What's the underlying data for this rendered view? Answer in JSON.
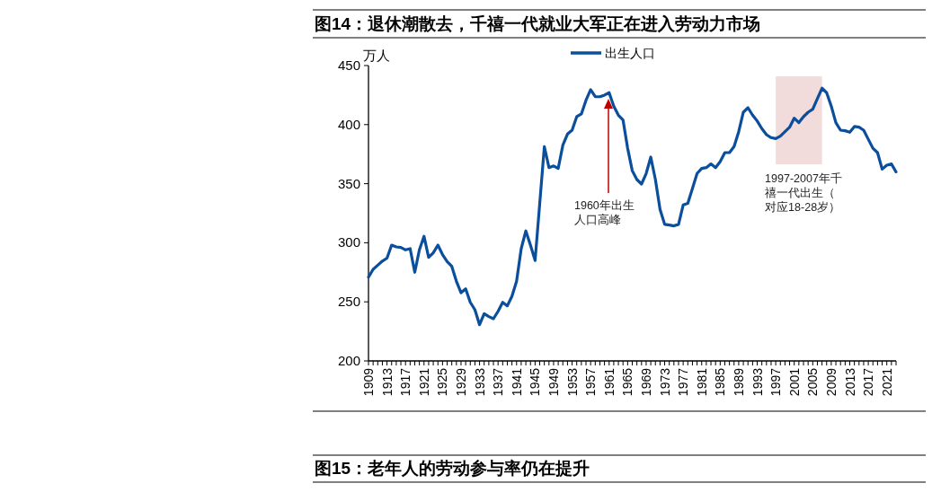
{
  "chart_data": {
    "type": "line",
    "title": "图14：退休潮散去，千禧一代就业大军正在进入劳动力市场",
    "ylabel": "万人",
    "x": [
      1909,
      1910,
      1911,
      1912,
      1913,
      1914,
      1915,
      1916,
      1917,
      1918,
      1919,
      1920,
      1921,
      1922,
      1923,
      1924,
      1925,
      1926,
      1927,
      1928,
      1929,
      1930,
      1931,
      1932,
      1933,
      1934,
      1935,
      1936,
      1937,
      1938,
      1939,
      1940,
      1941,
      1942,
      1943,
      1944,
      1945,
      1946,
      1947,
      1948,
      1949,
      1950,
      1951,
      1952,
      1953,
      1954,
      1955,
      1956,
      1957,
      1958,
      1959,
      1960,
      1961,
      1962,
      1963,
      1964,
      1965,
      1966,
      1967,
      1968,
      1969,
      1970,
      1971,
      1972,
      1973,
      1974,
      1975,
      1976,
      1977,
      1978,
      1979,
      1980,
      1981,
      1982,
      1983,
      1984,
      1985,
      1986,
      1987,
      1988,
      1989,
      1990,
      1991,
      1992,
      1993,
      1994,
      1995,
      1996,
      1997,
      1998,
      1999,
      2000,
      2001,
      2002,
      2003,
      2004,
      2005,
      2006,
      2007,
      2008,
      2009,
      2010,
      2011,
      2012,
      2013,
      2014,
      2015,
      2016,
      2017,
      2018,
      2019,
      2020,
      2021,
      2022,
      2023
    ],
    "series": [
      {
        "name": "出生人口",
        "color": "#0b4f9c",
        "values": [
          271,
          277.5,
          281,
          284.5,
          287,
          298,
          296.5,
          296,
          294,
          295,
          275,
          294,
          305.5,
          287.6,
          291.5,
          298,
          290,
          284,
          280,
          267.4,
          257.7,
          261,
          249.6,
          243.3,
          230.6,
          240,
          237.5,
          235.7,
          242,
          249.6,
          246.6,
          254.7,
          267.4,
          295,
          310,
          298,
          285,
          333,
          381.4,
          363.6,
          365,
          363,
          382.6,
          392,
          395.3,
          406.7,
          409,
          420.6,
          429.5,
          423.6,
          423.6,
          425,
          427,
          415.6,
          408,
          404,
          380,
          361,
          353.5,
          349.7,
          358.6,
          372.5,
          353.5,
          328.2,
          315.6,
          315,
          314.3,
          315.6,
          332,
          333.3,
          345.9,
          358.6,
          362.9,
          363.6,
          366.7,
          363.6,
          368.7,
          376.3,
          376.3,
          381.4,
          394,
          410.5,
          414.3,
          408,
          403,
          396.6,
          391.5,
          389,
          388.2,
          390.3,
          394,
          397.8,
          405.5,
          401.7,
          406.7,
          410.5,
          413,
          421.9,
          430.8,
          427,
          415.6,
          401.7,
          395.3,
          394.8,
          393.5,
          398.4,
          397.8,
          395.3,
          387.6,
          380,
          376.3,
          362.3,
          365.7,
          366.7,
          360
        ]
      }
    ],
    "xlim": [
      1909,
      2023
    ],
    "xticks": [
      1909,
      {
        "value": 1910,
        "label": null
      },
      {
        "value": 1911,
        "label": null
      },
      {
        "value": 1912,
        "label": null
      },
      1913,
      {
        "value": 1914,
        "label": null
      },
      {
        "value": 1915,
        "label": null
      },
      {
        "value": 1916,
        "label": null
      },
      1917,
      {
        "value": 1918,
        "label": null
      },
      {
        "value": 1919,
        "label": null
      },
      {
        "value": 1920,
        "label": null
      },
      1921,
      {
        "value": 1922,
        "label": null
      },
      {
        "value": 1923,
        "label": null
      },
      {
        "value": 1924,
        "label": null
      },
      1925,
      {
        "value": 1926,
        "label": null
      },
      {
        "value": 1927,
        "label": null
      },
      {
        "value": 1928,
        "label": null
      },
      1929,
      {
        "value": 1930,
        "label": null
      },
      {
        "value": 1931,
        "label": null
      },
      {
        "value": 1932,
        "label": null
      },
      1933,
      {
        "value": 1934,
        "label": null
      },
      {
        "value": 1935,
        "label": null
      },
      {
        "value": 1936,
        "label": null
      },
      1937,
      {
        "value": 1938,
        "label": null
      },
      {
        "value": 1939,
        "label": null
      },
      {
        "value": 1940,
        "label": null
      },
      1941,
      {
        "value": 1942,
        "label": null
      },
      {
        "value": 1943,
        "label": null
      },
      {
        "value": 1944,
        "label": null
      },
      1945,
      {
        "value": 1946,
        "label": null
      },
      {
        "value": 1947,
        "label": null
      },
      {
        "value": 1948,
        "label": null
      },
      1949,
      {
        "value": 1950,
        "label": null
      },
      {
        "value": 1951,
        "label": null
      },
      {
        "value": 1952,
        "label": null
      },
      1953,
      {
        "value": 1954,
        "label": null
      },
      {
        "value": 1955,
        "label": null
      },
      {
        "value": 1956,
        "label": null
      },
      1957,
      {
        "value": 1958,
        "label": null
      },
      {
        "value": 1959,
        "label": null
      },
      {
        "value": 1960,
        "label": null
      },
      1961,
      {
        "value": 1962,
        "label": null
      },
      {
        "value": 1963,
        "label": null
      },
      {
        "value": 1964,
        "label": null
      },
      1965,
      {
        "value": 1966,
        "label": null
      },
      {
        "value": 1967,
        "label": null
      },
      {
        "value": 1968,
        "label": null
      },
      1969,
      {
        "value": 1970,
        "label": null
      },
      {
        "value": 1971,
        "label": null
      },
      {
        "value": 1972,
        "label": null
      },
      1973,
      {
        "value": 1974,
        "label": null
      },
      {
        "value": 1975,
        "label": null
      },
      {
        "value": 1976,
        "label": null
      },
      1977,
      {
        "value": 1978,
        "label": null
      },
      {
        "value": 1979,
        "label": null
      },
      {
        "value": 1980,
        "label": null
      },
      1981,
      {
        "value": 1982,
        "label": null
      },
      {
        "value": 1983,
        "label": null
      },
      {
        "value": 1984,
        "label": null
      },
      1985,
      {
        "value": 1986,
        "label": null
      },
      {
        "value": 1987,
        "label": null
      },
      {
        "value": 1988,
        "label": null
      },
      1989,
      {
        "value": 1990,
        "label": null
      },
      {
        "value": 1991,
        "label": null
      },
      {
        "value": 1992,
        "label": null
      },
      1993,
      {
        "value": 1994,
        "label": null
      },
      {
        "value": 1995,
        "label": null
      },
      {
        "value": 1996,
        "label": null
      },
      1997,
      {
        "value": 1998,
        "label": null
      },
      {
        "value": 1999,
        "label": null
      },
      {
        "value": 2000,
        "label": null
      },
      2001,
      {
        "value": 2002,
        "label": null
      },
      {
        "value": 2003,
        "label": null
      },
      {
        "value": 2004,
        "label": null
      },
      2005,
      {
        "value": 2006,
        "label": null
      },
      {
        "value": 2007,
        "label": null
      },
      {
        "value": 2008,
        "label": null
      },
      2009,
      {
        "value": 2010,
        "label": null
      },
      {
        "value": 2011,
        "label": null
      },
      {
        "value": 2012,
        "label": null
      },
      2013,
      {
        "value": 2014,
        "label": null
      },
      {
        "value": 2015,
        "label": null
      },
      {
        "value": 2016,
        "label": null
      },
      2017,
      {
        "value": 2018,
        "label": null
      },
      {
        "value": 2019,
        "label": null
      },
      {
        "value": 2020,
        "label": null
      },
      2021,
      {
        "value": 2022,
        "label": null
      },
      {
        "value": 2023,
        "label": null
      }
    ],
    "ylim": [
      200,
      450
    ],
    "yticks": [
      200,
      250,
      300,
      350,
      400,
      450
    ],
    "bands": [
      {
        "axis": "x",
        "from": 1997,
        "to": 2007,
        "label": "1997-2007年千禧一代出生（对应18-28岁）",
        "color": "#f2dcdb"
      }
    ],
    "annotations": [
      "1960年出生人口高峰",
      "图15：老年人的劳动参与率仍在提升"
    ],
    "legend": "top",
    "grid": false,
    "marker": "none",
    "line_style": "solid"
  }
}
